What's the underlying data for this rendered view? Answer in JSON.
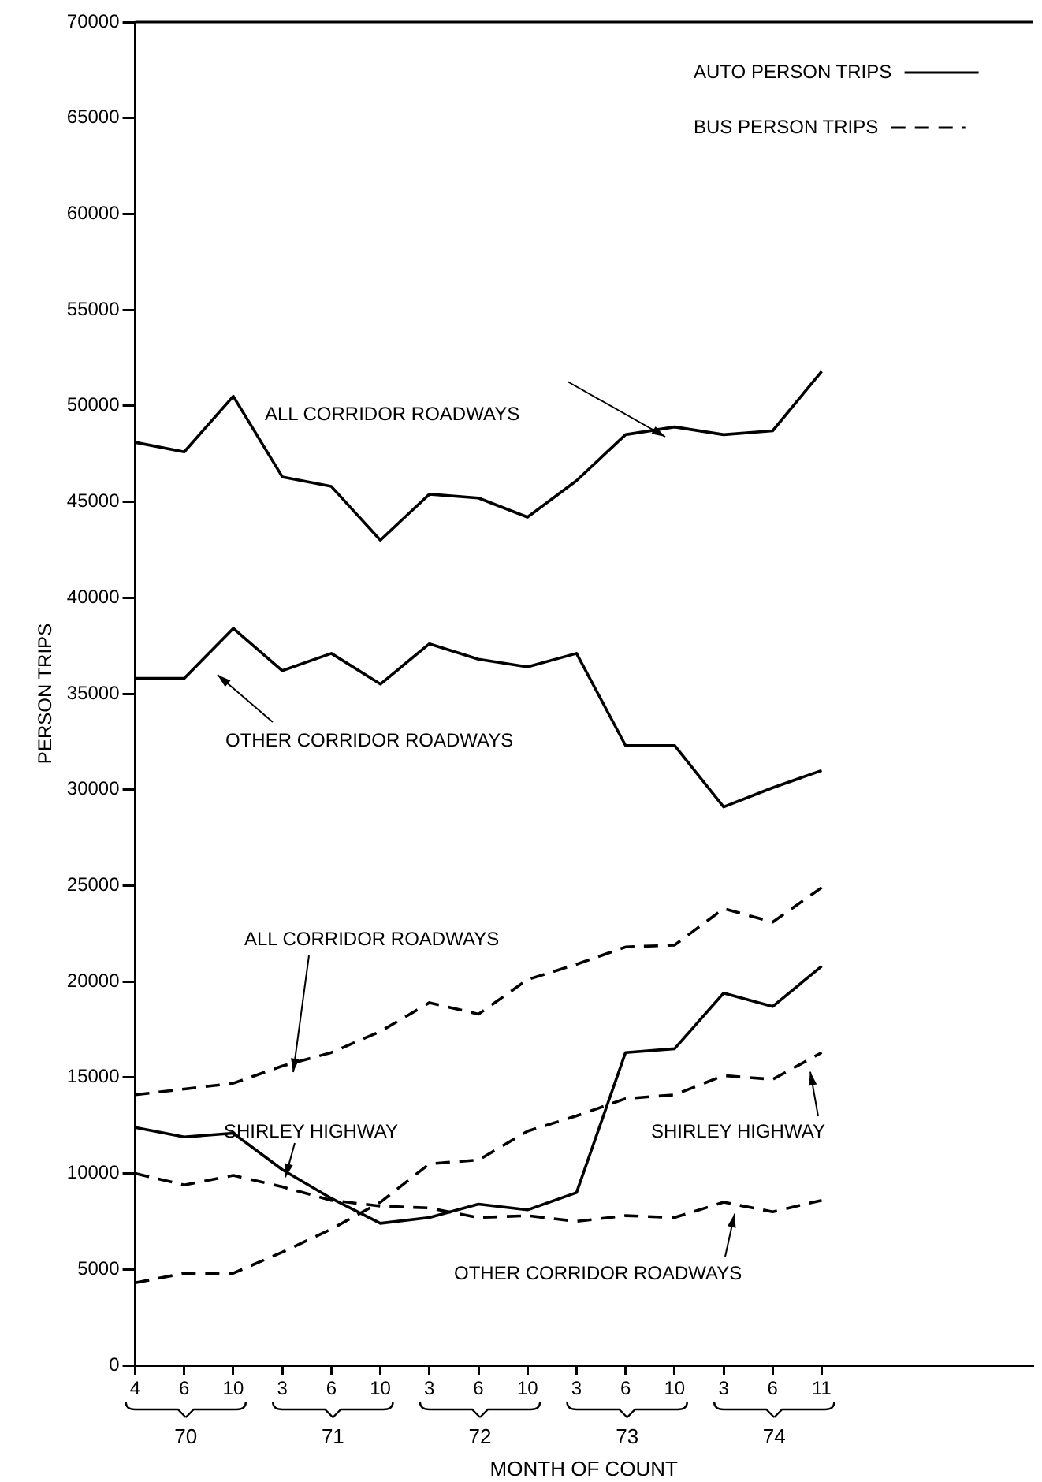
{
  "chart_data": {
    "type": "line",
    "xlabel": "MONTH OF COUNT",
    "ylabel": "PERSON TRIPS",
    "categories": [
      "4",
      "6",
      "10",
      "3",
      "6",
      "10",
      "3",
      "6",
      "10",
      "3",
      "6",
      "10",
      "3",
      "6",
      "11"
    ],
    "ylim": [
      0,
      70000
    ],
    "yticks": [
      0,
      5000,
      10000,
      15000,
      20000,
      25000,
      30000,
      35000,
      40000,
      45000,
      50000,
      55000,
      60000,
      65000,
      70000
    ],
    "grid": false,
    "marker": "none",
    "legend": "top right",
    "annotations": [
      "ALL CORRIDOR ROADWAYS",
      "OTHER CORRIDOR ROADWAYS",
      {
        "text": "SHIRLEY HIGHWAY",
        "y": 9800
      },
      "ALL CORRIDOR ROADWAYS",
      {
        "text": "SHIRLEY HIGHWAY",
        "y": 15300
      },
      {
        "text": "OTHER CORRIDOR ROADWAYS",
        "y": 7900
      },
      "70",
      "71",
      "72",
      "73",
      "74"
    ],
    "series": [
      {
        "name": "AUTO PERSON TRIPS",
        "color": "#000000",
        "line_style": "solid",
        "values": [
          48100,
          47600,
          50500,
          46300,
          45800,
          43000,
          45400,
          45200,
          44200,
          46100,
          48500,
          48900,
          48500,
          48700,
          51800
        ]
      },
      {
        "color": "#000000",
        "line_style": "solid",
        "values": [
          35800,
          35800,
          38400,
          36200,
          37100,
          35500,
          37600,
          36800,
          36400,
          37100,
          32300,
          32300,
          29100,
          30100,
          31000
        ]
      },
      {
        "color": "#000000",
        "line_style": "solid",
        "values": [
          12400,
          11900,
          12100,
          10200,
          8700,
          7400,
          7700,
          8400,
          8100,
          9000,
          16300,
          16500,
          19400,
          18700,
          20800
        ]
      },
      {
        "name": "BUS PERSON TRIPS",
        "color": "#000000",
        "line_style": "dashed",
        "values": [
          14100,
          14400,
          14700,
          15600,
          16300,
          17400,
          18900,
          18300,
          20100,
          20900,
          21800,
          21900,
          23800,
          23100,
          24900
        ]
      },
      {
        "color": "#000000",
        "line_style": "dashed",
        "values": [
          4300,
          4800,
          4800,
          5900,
          7100,
          8500,
          10500,
          10700,
          12200,
          13000,
          13900,
          14100,
          15100,
          14900,
          16300
        ]
      },
      {
        "color": "#000000",
        "line_style": "dashed",
        "values": [
          10000,
          9400,
          9900,
          9300,
          8600,
          8300,
          8200,
          7700,
          7800,
          7500,
          7800,
          7700,
          8500,
          8000,
          8600
        ]
      }
    ]
  }
}
